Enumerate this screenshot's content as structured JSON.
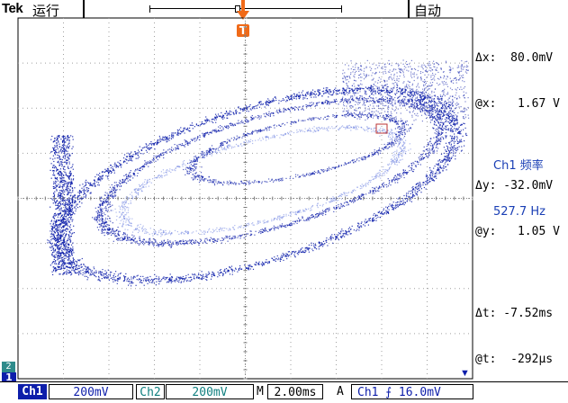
{
  "header": {
    "brand": "Tek",
    "run_state": "运行",
    "acq_mode": "自动",
    "trigger_marker": "T"
  },
  "colors": {
    "ch1": "#0d1eaa",
    "ch2": "#118080",
    "trigger": "#f06a18",
    "grid": "#a0a0a0"
  },
  "cursors": {
    "dx": "Δx:  80.0mV",
    "ax": "@x:   1.67 V",
    "dy": "Δy: -32.0mV",
    "ay": "@y:   1.05 V",
    "dt": "Δt: -7.52ms",
    "at": "@t:  -292μs"
  },
  "measurement": {
    "label": "Ch1 频率",
    "value": "527.7 Hz"
  },
  "status_bar": {
    "ch1_label": "Ch1",
    "ch1_scale": "200mV",
    "ch2_label": "Ch2",
    "ch2_scale": "200mV",
    "time_label": "M",
    "time_scale": "2.00ms",
    "trigger_label": "A",
    "trigger_info": "Ch1 ⨍ 16.0mV",
    "ch1_marker": "1",
    "ch2_marker": "2"
  },
  "display_mode": "XY"
}
